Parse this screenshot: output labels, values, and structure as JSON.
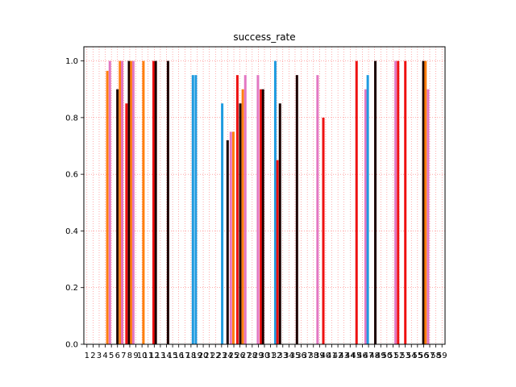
{
  "chart_data": {
    "type": "bar",
    "title": "success_rate",
    "xlabel": "",
    "ylabel": "",
    "ylim": [
      0,
      1.05
    ],
    "yticks": [
      "0.0",
      "0.2",
      "0.4",
      "0.6",
      "0.8",
      "1.0"
    ],
    "grid": "both, red dotted",
    "legend": "none",
    "x_tick_labels_note": "dense overlapping category labels, ending \"…59\"",
    "categories": [
      "1",
      "2",
      "3",
      "4",
      "5",
      "6",
      "7",
      "8",
      "9",
      "10",
      "11",
      "12",
      "13",
      "14",
      "15",
      "16",
      "17",
      "18",
      "19",
      "20",
      "21",
      "22",
      "23",
      "24",
      "25",
      "26",
      "27",
      "28",
      "29",
      "30",
      "31",
      "32",
      "33",
      "34",
      "35",
      "36",
      "37",
      "38",
      "39",
      "40",
      "41",
      "42",
      "43",
      "44",
      "45",
      "46",
      "47",
      "48",
      "49",
      "50",
      "51",
      "52",
      "53",
      "54",
      "55",
      "56",
      "57",
      "58",
      "59"
    ],
    "bars": [
      {
        "pos": 0.065,
        "value": 0.965,
        "color": "#ff7f0e"
      },
      {
        "pos": 0.072,
        "value": 1.0,
        "color": "#e377c2"
      },
      {
        "pos": 0.093,
        "value": 0.9,
        "color": "#1a0000"
      },
      {
        "pos": 0.1,
        "value": 1.0,
        "color": "#ff7f0e"
      },
      {
        "pos": 0.106,
        "value": 1.0,
        "color": "#e377c2"
      },
      {
        "pos": 0.118,
        "value": 0.85,
        "color": "#ee1111"
      },
      {
        "pos": 0.125,
        "value": 1.0,
        "color": "#1a0000"
      },
      {
        "pos": 0.131,
        "value": 1.0,
        "color": "#ff7f0e"
      },
      {
        "pos": 0.137,
        "value": 1.0,
        "color": "#e377c2"
      },
      {
        "pos": 0.165,
        "value": 1.0,
        "color": "#ff7f0e"
      },
      {
        "pos": 0.193,
        "value": 1.0,
        "color": "#ee1111"
      },
      {
        "pos": 0.199,
        "value": 1.0,
        "color": "#1a0000"
      },
      {
        "pos": 0.233,
        "value": 1.0,
        "color": "#1a0000"
      },
      {
        "pos": 0.302,
        "value": 0.95,
        "color": "#1f9be0"
      },
      {
        "pos": 0.31,
        "value": 0.95,
        "color": "#1f9be0"
      },
      {
        "pos": 0.383,
        "value": 0.85,
        "color": "#1f9be0"
      },
      {
        "pos": 0.398,
        "value": 0.72,
        "color": "#1a0000"
      },
      {
        "pos": 0.407,
        "value": 0.75,
        "color": "#e377c2"
      },
      {
        "pos": 0.414,
        "value": 0.75,
        "color": "#ff7f0e"
      },
      {
        "pos": 0.425,
        "value": 0.95,
        "color": "#ee1111"
      },
      {
        "pos": 0.433,
        "value": 0.85,
        "color": "#1a0000"
      },
      {
        "pos": 0.44,
        "value": 0.9,
        "color": "#ff7f0e"
      },
      {
        "pos": 0.447,
        "value": 0.95,
        "color": "#e377c2"
      },
      {
        "pos": 0.482,
        "value": 0.95,
        "color": "#e377c2"
      },
      {
        "pos": 0.49,
        "value": 0.9,
        "color": "#ee1111"
      },
      {
        "pos": 0.496,
        "value": 0.9,
        "color": "#1a0000"
      },
      {
        "pos": 0.53,
        "value": 1.0,
        "color": "#1f9be0"
      },
      {
        "pos": 0.536,
        "value": 0.65,
        "color": "#ee1111"
      },
      {
        "pos": 0.543,
        "value": 0.85,
        "color": "#1a0000"
      },
      {
        "pos": 0.59,
        "value": 0.95,
        "color": "#1a0000"
      },
      {
        "pos": 0.647,
        "value": 0.95,
        "color": "#e377c2"
      },
      {
        "pos": 0.663,
        "value": 0.8,
        "color": "#ee1111"
      },
      {
        "pos": 0.755,
        "value": 1.0,
        "color": "#ee1111"
      },
      {
        "pos": 0.78,
        "value": 0.9,
        "color": "#e377c2"
      },
      {
        "pos": 0.786,
        "value": 0.95,
        "color": "#1f9be0"
      },
      {
        "pos": 0.807,
        "value": 1.0,
        "color": "#1a0000"
      },
      {
        "pos": 0.863,
        "value": 1.0,
        "color": "#e377c2"
      },
      {
        "pos": 0.87,
        "value": 1.0,
        "color": "#ee1111"
      },
      {
        "pos": 0.89,
        "value": 1.0,
        "color": "#ee1111"
      },
      {
        "pos": 0.94,
        "value": 1.0,
        "color": "#1a0000"
      },
      {
        "pos": 0.946,
        "value": 1.0,
        "color": "#ff7f0e"
      },
      {
        "pos": 0.953,
        "value": 0.9,
        "color": "#e377c2"
      }
    ]
  }
}
